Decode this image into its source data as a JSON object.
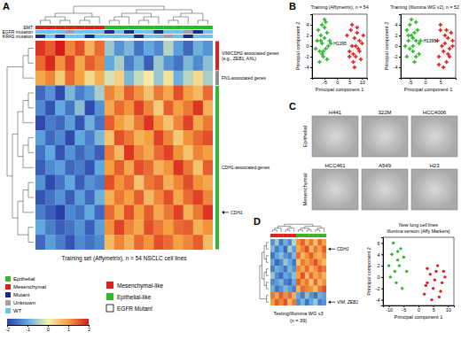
{
  "panel_labels": [
    "A",
    "B",
    "C",
    "D"
  ],
  "key": {
    "annotation": [
      {
        "label": "Epithelial",
        "color": "#2db82d"
      },
      {
        "label": "Mesenchymal",
        "color": "#e0201b"
      },
      {
        "label": "Mutant",
        "color": "#1c2a80"
      },
      {
        "label": "Unknown",
        "color": "#a0a0a0"
      },
      {
        "label": "WT",
        "color": "#6fc3e8"
      }
    ],
    "groups": [
      {
        "label": "Mesenchymal-like",
        "color": "#e0201b",
        "marker": "square"
      },
      {
        "label": "Epithelial-like",
        "color": "#2db82d",
        "marker": "square"
      },
      {
        "label": "EGFR Mutant",
        "color": "#000000",
        "marker": "outline"
      }
    ]
  },
  "chart_data": [
    {
      "type": "heatmap",
      "x_label": "Training set (Affymetrix), n = 54 NSCLC cell lines",
      "colorbar": {
        "range": [
          -2,
          2
        ],
        "ticks": [
          -2,
          -1,
          0,
          1,
          2
        ],
        "colors": [
          "#2b3fa8",
          "#5fa8e0",
          "#f2f2b0",
          "#f5a040",
          "#d7191c"
        ]
      },
      "annotation_rows": [
        {
          "label": "EMT",
          "values": [
            "Mesenchymal",
            "Mesenchymal",
            "Mesenchymal",
            "Mesenchymal",
            "Mesenchymal",
            "Mesenchymal",
            "Mesenchymal",
            "Epithelial",
            "Epithelial",
            "Epithelial",
            "Epithelial",
            "Epithelial",
            "Epithelial",
            "Epithelial",
            "Epithelial",
            "Epithelial",
            "Epithelial",
            "Epithelial"
          ]
        },
        {
          "label": "EGFR mutation",
          "values": [
            "WT",
            "WT",
            "WT",
            "Unknown",
            "WT",
            "WT",
            "WT",
            "Mutant",
            "WT",
            "Mutant",
            "WT",
            "WT",
            "Mutant",
            "WT",
            "WT",
            "Unknown",
            "Mutant",
            "WT"
          ]
        },
        {
          "label": "KRAS mutation",
          "values": [
            "Mutant",
            "WT",
            "Mutant",
            "WT",
            "WT",
            "Mutant",
            "WT",
            "WT",
            "WT",
            "WT",
            "Mutant",
            "WT",
            "WT",
            "Unknown",
            "WT",
            "Mutant",
            "WT",
            "WT"
          ]
        }
      ],
      "row_groups": [
        {
          "lines": [
            "VIM/CDH2-associated genes",
            "(e.g., ZEB1, AXL)"
          ],
          "color": "#e0201b",
          "first_row": 0,
          "last_row": 1
        },
        {
          "lines": [
            "FN1-associated genes"
          ],
          "color": "#8c8c8c",
          "first_row": 2,
          "last_row": 2
        },
        {
          "lines": [
            "CDH1-associated genes"
          ],
          "color": "#2db82d",
          "first_row": 3,
          "last_row": 13
        }
      ],
      "row_markers": [
        {
          "text": "CDH1",
          "row": 11
        }
      ],
      "z": [
        [
          1.8,
          1.5,
          2.0,
          1.2,
          1.6,
          0.8,
          1.4,
          -0.6,
          -1.2,
          -0.8,
          -1.5,
          -1.0,
          -1.3,
          -0.4,
          -1.1,
          -1.6,
          -0.9,
          -1.2
        ],
        [
          1.4,
          1.9,
          1.1,
          1.7,
          0.9,
          1.5,
          1.2,
          -1.0,
          -0.5,
          -1.4,
          -0.9,
          -1.7,
          -0.6,
          -1.2,
          -1.5,
          -0.8,
          -1.3,
          -0.7
        ],
        [
          0.9,
          1.2,
          0.5,
          1.4,
          1.0,
          0.3,
          0.8,
          -0.2,
          0.4,
          -0.8,
          -0.3,
          0.1,
          -0.6,
          0.2,
          -0.9,
          -0.4,
          0.3,
          -0.5
        ],
        [
          -1.6,
          -1.2,
          -1.9,
          -0.8,
          -1.4,
          -1.1,
          -0.5,
          1.2,
          0.8,
          1.5,
          1.1,
          0.6,
          1.3,
          0.9,
          1.6,
          1.0,
          0.7,
          1.4
        ],
        [
          -1.3,
          -1.8,
          -1.0,
          -1.5,
          -0.7,
          -1.9,
          -1.2,
          0.9,
          1.4,
          1.1,
          1.7,
          1.2,
          0.5,
          1.5,
          1.0,
          1.3,
          1.8,
          0.8
        ],
        [
          -1.9,
          -1.4,
          -1.6,
          -1.1,
          -1.8,
          -0.9,
          -1.5,
          1.5,
          1.0,
          0.7,
          1.3,
          1.8,
          1.1,
          0.6,
          1.2,
          1.7,
          0.9,
          1.3
        ],
        [
          -1.1,
          -1.6,
          -1.3,
          -1.9,
          -1.0,
          -1.4,
          -0.8,
          0.6,
          1.6,
          1.3,
          0.8,
          1.0,
          1.7,
          1.2,
          0.5,
          1.1,
          1.4,
          1.6
        ],
        [
          -1.5,
          -1.0,
          -1.8,
          -1.2,
          -1.6,
          -1.3,
          -1.7,
          1.3,
          0.7,
          1.8,
          1.2,
          0.9,
          1.4,
          1.7,
          1.1,
          0.6,
          1.2,
          1.0
        ],
        [
          -1.7,
          -1.3,
          -1.1,
          -1.6,
          -1.4,
          -1.8,
          -1.0,
          1.0,
          1.5,
          0.9,
          1.6,
          1.4,
          0.8,
          1.1,
          1.8,
          1.3,
          0.6,
          1.5
        ],
        [
          -1.2,
          -1.9,
          -1.5,
          -1.0,
          -1.7,
          -1.2,
          -1.4,
          1.6,
          1.1,
          1.4,
          0.6,
          1.3,
          1.5,
          0.8,
          1.2,
          1.6,
          1.1,
          0.9
        ],
        [
          -1.8,
          -1.5,
          -1.2,
          -1.7,
          -1.1,
          -1.6,
          -0.9,
          0.8,
          1.3,
          1.0,
          1.5,
          0.7,
          1.2,
          1.6,
          0.9,
          1.4,
          1.7,
          1.2
        ],
        [
          -1.4,
          -1.7,
          -2.0,
          -1.3,
          -1.5,
          -1.0,
          -1.6,
          1.4,
          0.9,
          1.6,
          1.0,
          1.5,
          0.9,
          1.3,
          1.7,
          0.8,
          1.3,
          1.8
        ],
        [
          -1.0,
          -1.4,
          -1.7,
          -1.5,
          -1.2,
          -1.7,
          -1.1,
          1.1,
          1.7,
          1.2,
          0.9,
          1.6,
          1.3,
          1.0,
          1.4,
          1.5,
          0.8,
          1.1
        ],
        [
          -1.6,
          -1.1,
          -1.4,
          -1.8,
          -1.3,
          -1.5,
          -1.3,
          0.7,
          1.2,
          0.8,
          1.4,
          1.1,
          1.6,
          1.4,
          1.0,
          1.2,
          1.5,
          0.7
        ]
      ]
    },
    {
      "type": "scatter",
      "title": "Training (Affymetrix), n = 54",
      "x_label": "Principal component 1",
      "y_label": "Principal component 2",
      "xlim": [
        -10,
        12
      ],
      "xticks": [
        -5,
        0,
        5,
        10
      ],
      "ylim": [
        -6,
        6
      ],
      "yticks": [
        -4,
        -2,
        0,
        2,
        4
      ],
      "marker": "cross",
      "annotations": [
        {
          "text": "H1395",
          "x": -2.5,
          "y": 0.5
        }
      ],
      "series": [
        {
          "color": "#2db82d",
          "x": [
            -8,
            -7.5,
            -7,
            -6.5,
            -6,
            -6,
            -5.5,
            -5,
            -5,
            -4.5,
            -4,
            -3.5,
            -3,
            -7,
            -6,
            -5,
            -4,
            -8.5,
            -2.5,
            -4.5,
            -6.5,
            -5.5
          ],
          "values": [
            1,
            3,
            -1,
            2,
            0.5,
            4,
            -2,
            1.5,
            3.5,
            -0.5,
            2.5,
            0,
            1,
            -3,
            -1.5,
            5,
            -2.5,
            -0.5,
            0.5,
            4.5,
            1,
            -1
          ]
        },
        {
          "color": "#e0201b",
          "x": [
            4,
            5,
            5.5,
            6,
            6.5,
            7,
            7.5,
            8,
            8.5,
            9,
            9.5,
            10,
            6,
            7,
            8,
            5,
            9,
            7.5,
            10.5,
            6.5
          ],
          "values": [
            2,
            -1,
            3,
            0,
            -3,
            1.5,
            -2,
            2.5,
            -0.5,
            1,
            -2.5,
            0.5,
            4,
            -4,
            3.5,
            -2,
            -1,
            0,
            2,
            -1.5
          ]
        }
      ]
    },
    {
      "type": "scatter",
      "title": "Training (Illumina WG v2), n = 52",
      "x_label": "Principal component 1",
      "y_label": "Principal component 2",
      "xlim": [
        -8,
        10
      ],
      "xticks": [
        -5,
        0,
        5
      ],
      "ylim": [
        -6,
        6
      ],
      "yticks": [
        -4,
        -2,
        0,
        2,
        4
      ],
      "marker": "cross",
      "annotations": [
        {
          "text": "H1395",
          "x": -1.5,
          "y": 1
        }
      ],
      "series": [
        {
          "color": "#2db82d",
          "x": [
            -6,
            -5.5,
            -5,
            -4.5,
            -4,
            -4,
            -3.5,
            -3,
            -3,
            -2.5,
            -2,
            -5,
            -6.5,
            -4.5,
            -3.5,
            -2,
            -5.5,
            -4,
            -3,
            -6,
            -1.5
          ],
          "values": [
            3,
            1,
            4,
            2,
            0,
            -1,
            2.5,
            1,
            -2,
            3,
            0.5,
            -0.5,
            0,
            5,
            -3,
            -1.5,
            2,
            1.5,
            4.5,
            -2,
            1
          ]
        },
        {
          "color": "#e0201b",
          "x": [
            4,
            4.5,
            5,
            5.5,
            6,
            6.5,
            7,
            7.5,
            8,
            8.5,
            9,
            5,
            6,
            7,
            8,
            4.5,
            6.5,
            7.5,
            9
          ],
          "values": [
            1,
            -2,
            3,
            0,
            -1,
            2,
            -3,
            1.5,
            -0.5,
            2.5,
            0,
            4,
            -4,
            3,
            -2,
            -3.5,
            0.5,
            -1.5,
            1
          ]
        }
      ]
    },
    {
      "type": "image_grid",
      "rows": [
        {
          "label": "Epithelial",
          "images": [
            "H441",
            "322M",
            "HCC4006"
          ]
        },
        {
          "label": "Mesenchymal",
          "images": [
            "HCC461",
            "A549",
            "H23"
          ]
        }
      ]
    },
    {
      "type": "heatmap",
      "x_label_lines": [
        "Testing/Illumina WG v3",
        "(n = 39)"
      ],
      "annotation_rows": [
        {
          "values": [
            "Mesenchymal",
            "Mesenchymal",
            "Mesenchymal",
            "Mesenchymal",
            "Mesenchymal",
            "Mesenchymal",
            "Epithelial",
            "Epithelial",
            "Epithelial",
            "Epithelial",
            "Epithelial",
            "Epithelial",
            "Epithelial"
          ]
        }
      ],
      "row_markers": [
        {
          "text": "CDH1",
          "row": 1
        },
        {
          "text": "VIM, ZEB1",
          "row": 9
        }
      ],
      "z": [
        [
          -1.2,
          -0.6,
          -1.5,
          -0.9,
          -1.3,
          -0.4,
          1.1,
          1.5,
          0.8,
          1.3,
          0.6,
          1.4,
          1.0
        ],
        [
          -0.8,
          -1.4,
          -1.0,
          -1.6,
          -0.5,
          -1.1,
          0.9,
          1.2,
          1.6,
          0.7,
          1.3,
          1.0,
          1.5
        ],
        [
          -1.5,
          -1.0,
          -0.7,
          -1.2,
          -1.4,
          -0.8,
          1.4,
          0.7,
          1.1,
          1.5,
          1.0,
          0.8,
          1.2
        ],
        [
          -1.0,
          -1.6,
          -1.3,
          -0.6,
          -1.0,
          -1.5,
          0.6,
          1.3,
          1.0,
          1.2,
          1.6,
          1.1,
          0.7
        ],
        [
          -1.4,
          -0.9,
          -1.1,
          -1.5,
          -0.8,
          -1.2,
          1.2,
          0.9,
          1.4,
          0.8,
          1.1,
          1.5,
          1.3
        ],
        [
          -0.6,
          -1.3,
          -1.6,
          -1.0,
          -1.2,
          -0.7,
          1.0,
          1.6,
          0.7,
          1.4,
          0.9,
          1.2,
          0.8
        ],
        [
          -1.3,
          -1.1,
          -0.8,
          -1.4,
          -1.6,
          -1.0,
          1.5,
          1.0,
          1.3,
          0.6,
          1.4,
          0.7,
          1.1
        ],
        [
          -0.9,
          -1.5,
          -1.2,
          -0.8,
          -1.1,
          -1.4,
          0.8,
          1.4,
          1.2,
          1.1,
          0.7,
          1.3,
          1.6
        ],
        [
          1.3,
          0.9,
          1.5,
          1.1,
          1.4,
          0.8,
          -1.0,
          -1.4,
          -0.7,
          -1.2,
          -1.5,
          -0.9,
          -1.1
        ],
        [
          1.0,
          1.5,
          1.2,
          1.6,
          0.7,
          1.3,
          -1.3,
          -0.8,
          -1.5,
          -1.0,
          -0.6,
          -1.4,
          -1.2
        ]
      ]
    },
    {
      "type": "scatter",
      "title_lines": [
        "New lung cell lines",
        "illumina version (Affy Markers)"
      ],
      "x_label": "Principal component 1",
      "y_label": "Principal component 2",
      "xlim": [
        -12,
        12
      ],
      "xticks": [
        -10,
        -5,
        0,
        5,
        10
      ],
      "ylim": [
        -5,
        7
      ],
      "yticks": [
        -4,
        -2,
        0,
        2,
        4,
        6
      ],
      "marker": "circle",
      "series": [
        {
          "color": "#2db82d",
          "x": [
            -10,
            -9,
            -8,
            -7,
            -6,
            -8.5,
            -7.5,
            -6.5,
            -5,
            -9.5,
            -4,
            -7,
            -5.5
          ],
          "values": [
            2,
            4,
            1,
            3,
            5,
            6,
            -1,
            2,
            3.5,
            0,
            1,
            4.5,
            -2
          ]
        },
        {
          "color": "#e0201b",
          "x": [
            2,
            3,
            4,
            5,
            6,
            7,
            8,
            9,
            4.5,
            6.5,
            3,
            7.5,
            5.5,
            8.5,
            2.5
          ],
          "values": [
            -3,
            -1,
            0.5,
            -2,
            1,
            -3.5,
            -1,
            0,
            -4,
            2,
            1.5,
            -2.5,
            -0.5,
            1,
            -1.5
          ]
        }
      ]
    }
  ]
}
